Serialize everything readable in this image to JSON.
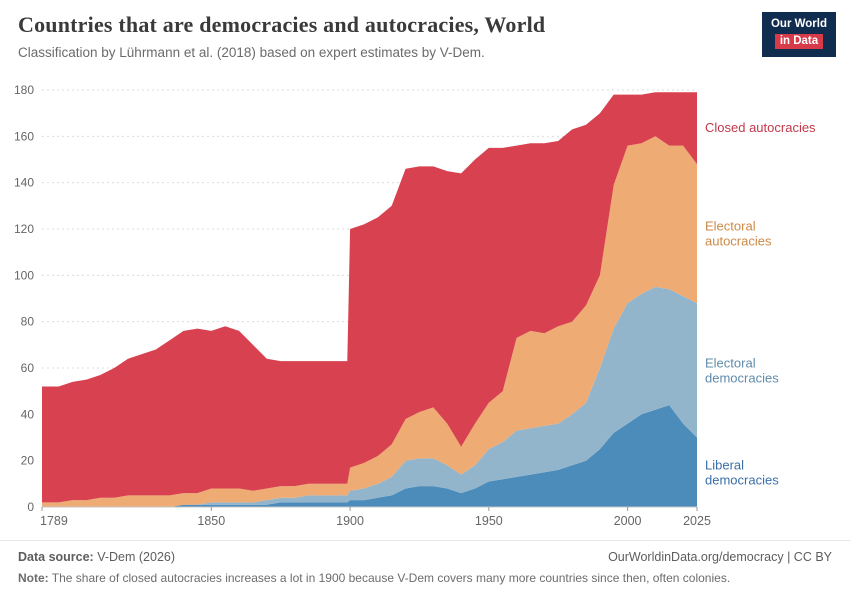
{
  "header": {
    "title": "Countries that are democracies and autocracies, World",
    "subtitle": "Classification by Lührmann et al. (2018) based on expert estimates by V-Dem.",
    "logo": {
      "line1": "Our World",
      "line2": "in Data"
    }
  },
  "chart_data": {
    "type": "area",
    "stacked": true,
    "title": "Countries that are democracies and autocracies, World",
    "xlabel": "",
    "ylabel": "",
    "ylim": [
      0,
      180
    ],
    "yticks": [
      0,
      20,
      40,
      60,
      80,
      100,
      120,
      140,
      160,
      180
    ],
    "xticks": [
      1789,
      1850,
      1900,
      1950,
      2000,
      2025
    ],
    "grid": true,
    "legend_position": "right",
    "x": [
      1789,
      1795,
      1800,
      1805,
      1810,
      1815,
      1820,
      1825,
      1830,
      1835,
      1840,
      1845,
      1850,
      1855,
      1860,
      1865,
      1870,
      1875,
      1880,
      1885,
      1890,
      1895,
      1899,
      1900,
      1905,
      1910,
      1915,
      1920,
      1925,
      1930,
      1935,
      1940,
      1945,
      1950,
      1955,
      1960,
      1965,
      1970,
      1975,
      1980,
      1985,
      1990,
      1995,
      2000,
      2005,
      2010,
      2015,
      2020,
      2025
    ],
    "series": [
      {
        "name": "Liberal democracies",
        "label_lines": [
          "Liberal",
          "democracies"
        ],
        "color": "#4c8cba",
        "label_color": "#3b6fa9",
        "values": [
          0,
          0,
          0,
          0,
          0,
          0,
          0,
          0,
          0,
          0,
          1,
          1,
          1,
          1,
          1,
          1,
          1,
          2,
          2,
          2,
          2,
          2,
          2,
          3,
          3,
          4,
          5,
          8,
          9,
          9,
          8,
          6,
          8,
          11,
          12,
          13,
          14,
          15,
          16,
          18,
          20,
          25,
          32,
          36,
          40,
          42,
          44,
          36,
          30
        ]
      },
      {
        "name": "Electoral democracies",
        "label_lines": [
          "Electoral",
          "democracies"
        ],
        "color": "#93b5cc",
        "label_color": "#5f8cab",
        "values": [
          0,
          0,
          0,
          0,
          0,
          0,
          0,
          0,
          0,
          0,
          0,
          0,
          1,
          1,
          1,
          1,
          2,
          2,
          2,
          3,
          3,
          3,
          3,
          4,
          5,
          6,
          8,
          12,
          12,
          12,
          10,
          8,
          10,
          14,
          16,
          20,
          20,
          20,
          20,
          22,
          25,
          35,
          45,
          52,
          52,
          53,
          50,
          55,
          58
        ]
      },
      {
        "name": "Electoral autocracies",
        "label_lines": [
          "Electoral",
          "autocracies"
        ],
        "color": "#eeab73",
        "label_color": "#cc8a47",
        "values": [
          2,
          2,
          3,
          3,
          4,
          4,
          5,
          5,
          5,
          5,
          5,
          5,
          6,
          6,
          6,
          5,
          5,
          5,
          5,
          5,
          5,
          5,
          5,
          10,
          11,
          12,
          14,
          18,
          20,
          22,
          18,
          12,
          18,
          20,
          22,
          40,
          42,
          40,
          42,
          40,
          42,
          40,
          62,
          68,
          65,
          65,
          62,
          65,
          60
        ]
      },
      {
        "name": "Closed autocracies",
        "label_lines": [
          "Closed autocracies"
        ],
        "color": "#d8414f",
        "label_color": "#c0394a",
        "values": [
          50,
          50,
          51,
          52,
          53,
          56,
          59,
          61,
          63,
          67,
          70,
          71,
          68,
          70,
          68,
          63,
          56,
          54,
          54,
          53,
          53,
          53,
          53,
          103,
          103,
          103,
          103,
          108,
          106,
          104,
          109,
          118,
          114,
          110,
          105,
          83,
          81,
          82,
          80,
          83,
          78,
          70,
          39,
          22,
          21,
          19,
          23,
          23,
          31
        ]
      }
    ]
  },
  "footer": {
    "datasource_label": "Data source:",
    "datasource": " V-Dem (2026)",
    "link": "OurWorldinData.org/democracy | CC BY",
    "note_label": "Note:",
    "note": " The share of closed autocracies increases a lot in 1900 because V-Dem covers many more countries since then, often colonies."
  }
}
